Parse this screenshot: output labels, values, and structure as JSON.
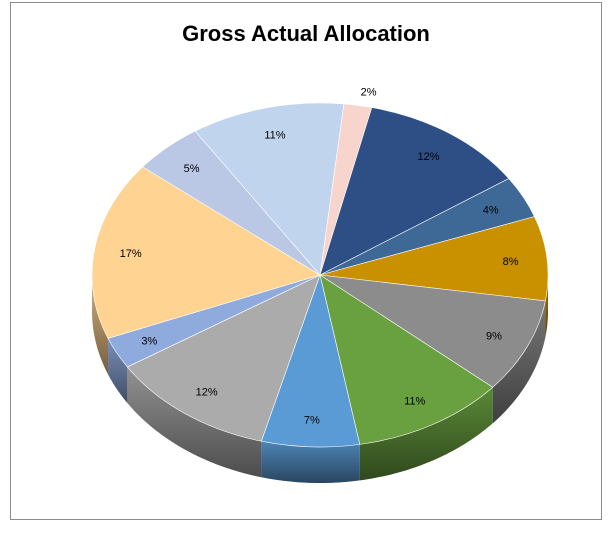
{
  "chart_data": {
    "type": "pie",
    "title": "Gross Actual Allocation",
    "style": "3d-tilted",
    "start_angle_deg": 84,
    "slices": [
      {
        "value": 2,
        "label": "2%",
        "color": "#f8d5cc"
      },
      {
        "value": 12,
        "label": "12%",
        "color": "#2e4f86"
      },
      {
        "value": 4,
        "label": "4%",
        "color": "#3e6997"
      },
      {
        "value": 8,
        "label": "8%",
        "color": "#c99100"
      },
      {
        "value": 9,
        "label": "9%",
        "color": "#8c8c8c"
      },
      {
        "value": 11,
        "label": "11%",
        "color": "#6aa140"
      },
      {
        "value": 7,
        "label": "7%",
        "color": "#5b9bd5"
      },
      {
        "value": 12,
        "label": "12%",
        "color": "#ababab"
      },
      {
        "value": 3,
        "label": "3%",
        "color": "#8faadc"
      },
      {
        "value": 17,
        "label": "17%",
        "color": "#ffd392"
      },
      {
        "value": 5,
        "label": "5%",
        "color": "#bac7e5"
      },
      {
        "value": 11,
        "label": "11%",
        "color": "#c1d4ee"
      }
    ]
  }
}
